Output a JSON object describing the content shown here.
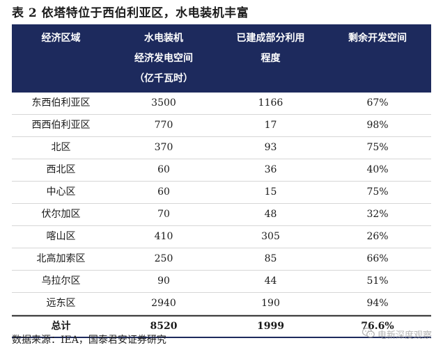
{
  "title": "表 2 依塔特位于西伯利亚区，水电装机丰富",
  "headers": [
    [
      "经济区域"
    ],
    [
      "水电装机",
      "经济发电空间",
      "（亿千瓦时）"
    ],
    [
      "已建成部分利用",
      "程度"
    ],
    [
      "剩余开发空间"
    ]
  ],
  "rows": [
    [
      "东西伯利亚区",
      "3500",
      "1166",
      "67%"
    ],
    [
      "西西伯利亚区",
      "770",
      "17",
      "98%"
    ],
    [
      "北区",
      "370",
      "93",
      "75%"
    ],
    [
      "西北区",
      "60",
      "36",
      "40%"
    ],
    [
      "中心区",
      "60",
      "15",
      "75%"
    ],
    [
      "伏尔加区",
      "70",
      "48",
      "32%"
    ],
    [
      "喀山区",
      "410",
      "305",
      "26%"
    ],
    [
      "北高加索区",
      "250",
      "85",
      "66%"
    ],
    [
      "乌拉尔区",
      "90",
      "44",
      "51%"
    ],
    [
      "远东区",
      "2940",
      "190",
      "94%"
    ]
  ],
  "total": [
    "总计",
    "8520",
    "1999",
    "76.6%"
  ],
  "source": "数据来源：IEA，国泰君安证券研究",
  "watermark": {
    "text": "电新深度观察",
    "icon": "wechat-icon"
  },
  "colors": {
    "header_bg": "#1d2a5d",
    "header_text": "#ffffff"
  }
}
